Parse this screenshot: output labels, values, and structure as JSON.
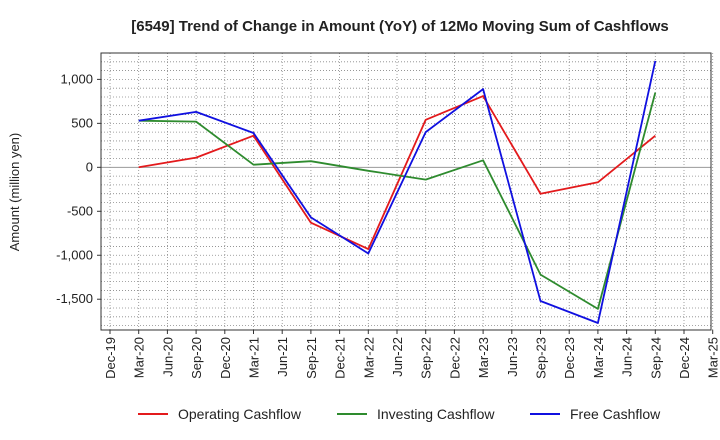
{
  "chart_data": {
    "type": "line",
    "title": "[6549]  Trend of Change in Amount (YoY) of 12Mo Moving Sum of Cashflows",
    "xlabel": "",
    "ylabel": "Amount (million yen)",
    "ylim": [
      -1850,
      1300
    ],
    "yticks": [
      1000,
      500,
      0,
      -500,
      -1000,
      -1500
    ],
    "ytick_labels": [
      "1,000",
      "500",
      "0",
      "-500",
      "-1,000",
      "-1,500"
    ],
    "categories": [
      "Dec-19",
      "Mar-20",
      "Jun-20",
      "Sep-20",
      "Dec-20",
      "Mar-21",
      "Jun-21",
      "Sep-21",
      "Dec-21",
      "Mar-22",
      "Jun-22",
      "Sep-22",
      "Dec-22",
      "Mar-23",
      "Jun-23",
      "Sep-23",
      "Dec-23",
      "Mar-24",
      "Jun-24",
      "Sep-24",
      "Dec-24",
      "Mar-25"
    ],
    "grid": true,
    "legend_position": "bottom",
    "series": [
      {
        "name": "Operating Cashflow",
        "color": "#e31a1c",
        "values": [
          null,
          0,
          null,
          110,
          null,
          360,
          null,
          -630,
          null,
          -930,
          null,
          540,
          null,
          810,
          null,
          -300,
          null,
          -170,
          null,
          360,
          null,
          null
        ]
      },
      {
        "name": "Investing Cashflow",
        "color": "#2e8b2e",
        "values": [
          null,
          530,
          null,
          520,
          null,
          30,
          null,
          70,
          null,
          -40,
          null,
          -140,
          null,
          80,
          null,
          -1220,
          null,
          -1610,
          null,
          850,
          null,
          null
        ]
      },
      {
        "name": "Free Cashflow",
        "color": "#1010e0",
        "values": [
          null,
          530,
          null,
          630,
          null,
          390,
          null,
          -570,
          null,
          -980,
          null,
          400,
          null,
          890,
          null,
          -1520,
          null,
          -1770,
          null,
          1210,
          null,
          null
        ]
      }
    ]
  }
}
